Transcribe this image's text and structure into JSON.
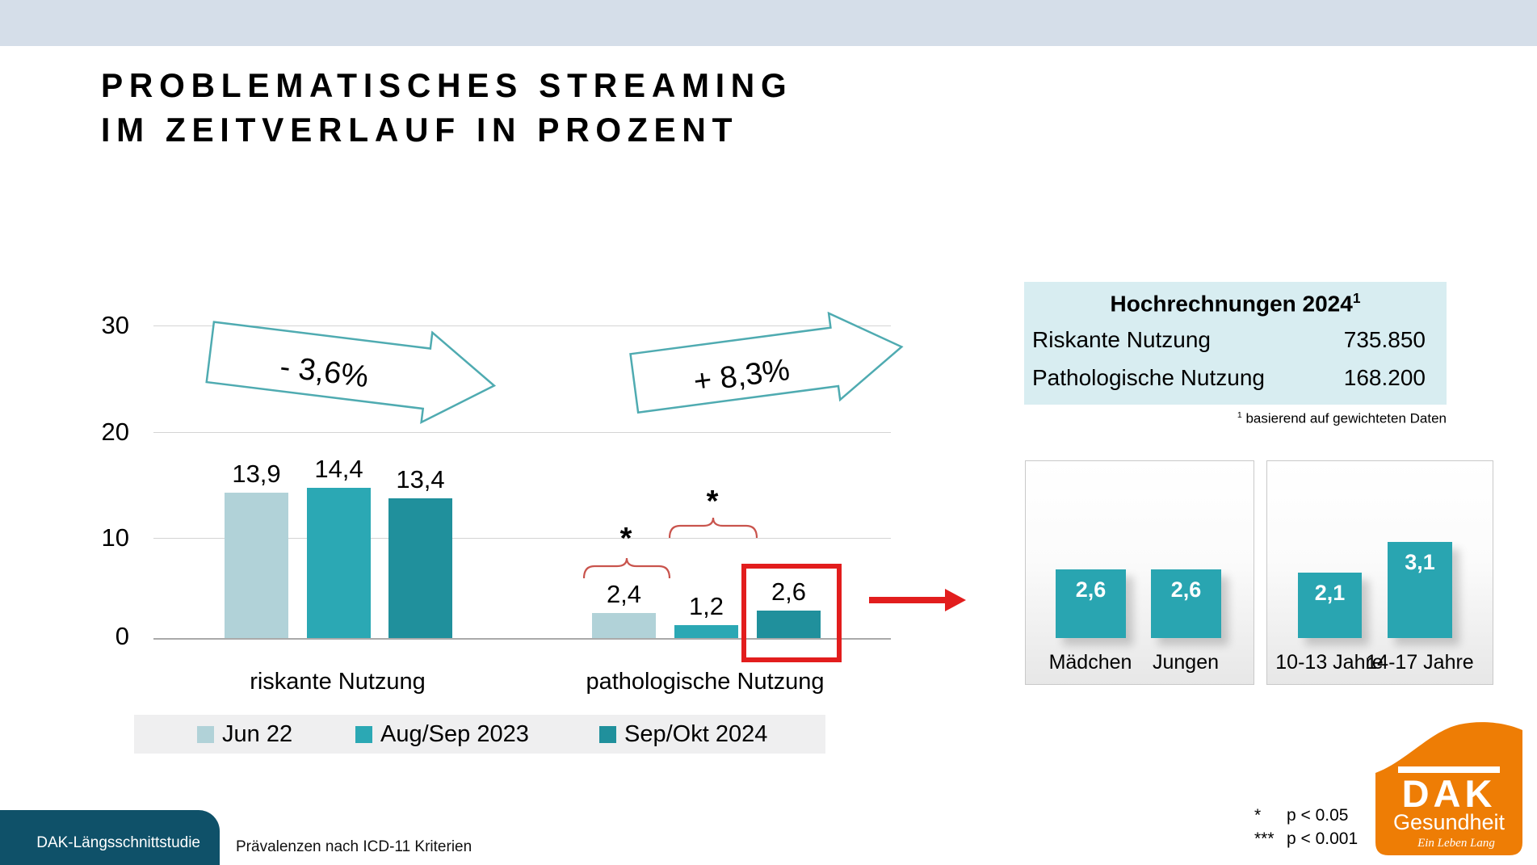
{
  "header": {
    "title_line1": "PROBLEMATISCHES STREAMING",
    "title_line2": "IM ZEITVERLAUF IN PROZENT"
  },
  "chart_data": [
    {
      "id": "main-timeline",
      "type": "bar",
      "title": "Problematisches Streaming im Zeitverlauf in Prozent",
      "categories": [
        "riskante Nutzung",
        "pathologische Nutzung"
      ],
      "series": [
        {
          "name": "Jun 22",
          "values": [
            13.9,
            2.4
          ],
          "labels": [
            "13,9",
            "2,4"
          ],
          "color": "#b1d2d8"
        },
        {
          "name": "Aug/Sep 2023",
          "values": [
            14.4,
            1.2
          ],
          "labels": [
            "14,4",
            "1,2"
          ],
          "color": "#2ba8b4"
        },
        {
          "name": "Sep/Okt 2024",
          "values": [
            13.4,
            2.6
          ],
          "labels": [
            "13,4",
            "2,6"
          ],
          "color": "#20909c"
        }
      ],
      "ylim": [
        0,
        30
      ],
      "yticks": [
        "30",
        "20",
        "10",
        "0"
      ],
      "grid": true,
      "legend_position": "bottom",
      "change_arrows": [
        {
          "category": "riskante Nutzung",
          "label": "- 3,6%"
        },
        {
          "category": "pathologische Nutzung",
          "label": "+ 8,3%"
        }
      ],
      "significance": [
        {
          "category": "pathologische Nutzung",
          "between": [
            "Jun 22",
            "Aug/Sep 2023"
          ],
          "symbol": "*"
        },
        {
          "category": "pathologische Nutzung",
          "between": [
            "Aug/Sep 2023",
            "Sep/Okt 2024"
          ],
          "symbol": "*"
        }
      ],
      "highlight": {
        "category": "pathologische Nutzung",
        "series": "Sep/Okt 2024",
        "value": 2.6,
        "style": "red-box"
      }
    },
    {
      "id": "gender-2024",
      "type": "bar",
      "categories": [
        "Mädchen",
        "Jungen"
      ],
      "values": [
        2.6,
        2.6
      ],
      "labels": [
        "2,6",
        "2,6"
      ],
      "bar_color": "#29a5b1"
    },
    {
      "id": "age-2024",
      "type": "bar",
      "categories": [
        "10-13 Jahre",
        "14-17 Jahre"
      ],
      "values": [
        2.1,
        3.1
      ],
      "labels": [
        "2,1",
        "3,1"
      ],
      "bar_color": "#29a5b1"
    }
  ],
  "projection_table": {
    "title": "Hochrechnungen 2024",
    "title_sup": "1",
    "rows": [
      {
        "label": "Riskante Nutzung",
        "value": "735.850"
      },
      {
        "label": "Pathologische Nutzung",
        "value": "168.200"
      }
    ],
    "footnote_sup": "1",
    "footnote": "basierend auf gewichteten Daten"
  },
  "significance_legend": [
    {
      "symbol": "*",
      "text": "p < 0.05"
    },
    {
      "symbol": "***",
      "text": "p < 0.001"
    }
  ],
  "footer": {
    "tab_label": "DAK-Längsschnittstudie",
    "subtitle": "Prävalenzen nach ICD-11 Kriterien"
  },
  "logo": {
    "brand": "DAK",
    "subbrand": "Gesundheit",
    "tagline": "Ein Leben Lang"
  },
  "colors": {
    "topbar": "#d5dee9",
    "series_jun22": "#b1d2d8",
    "series_augsep2023": "#2ba8b4",
    "series_sepokt2024": "#20909c",
    "mini_bar": "#29a5b1",
    "table_bg": "#d8edf1",
    "highlight_red": "#e21d1d",
    "brace_red": "#c9544d",
    "arrow_outline_teal": "#4fabb1",
    "footer_tab": "#0f5169",
    "logo_orange": "#ee7d05"
  }
}
